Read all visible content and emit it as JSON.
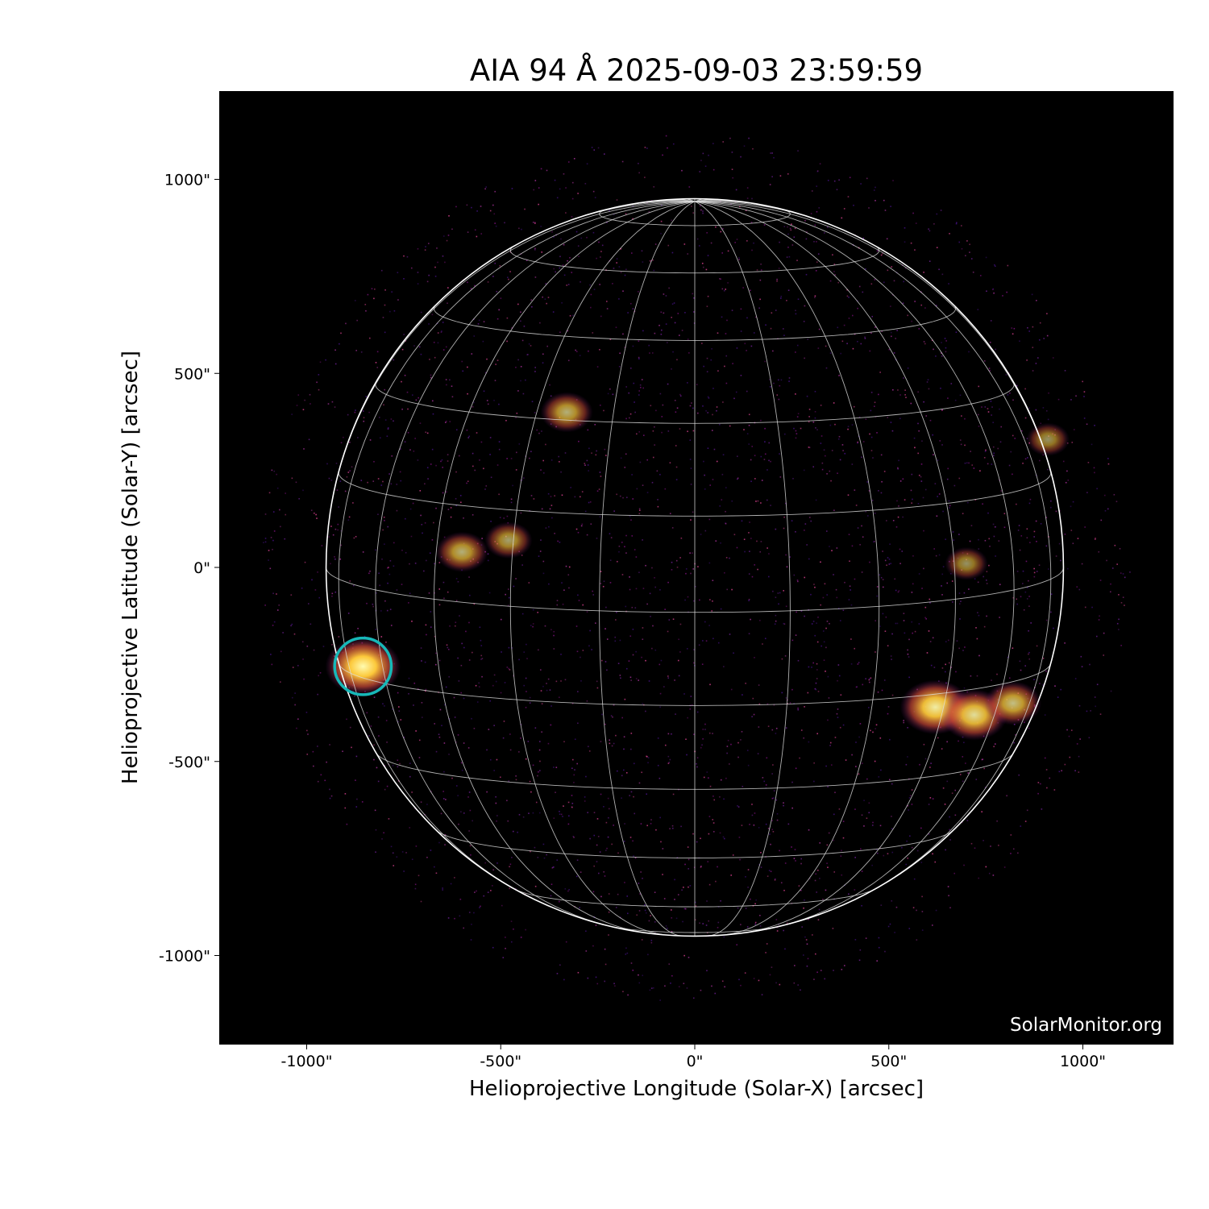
{
  "chart_data": {
    "type": "heatmap",
    "title": "AIA 94 Å 2025-09-03 23:59:59",
    "xlabel": "Helioprojective Longitude (Solar-X) [arcsec]",
    "ylabel": "Helioprojective Latitude (Solar-Y) [arcsec]",
    "xlim": [
      -1230,
      1230
    ],
    "ylim": [
      -1230,
      1230
    ],
    "x_ticks": [
      -1000,
      -500,
      0,
      500,
      1000
    ],
    "x_tick_labels": [
      "-1000\"",
      "-500\"",
      "0\"",
      "500\"",
      "1000\""
    ],
    "y_ticks": [
      1000,
      500,
      0,
      -500,
      -1000
    ],
    "y_tick_labels": [
      "1000\"",
      "500\"",
      "0\"",
      "-500\"",
      "-1000\""
    ],
    "solar_radius_arcsec": 950,
    "grid_spacing_deg": 15,
    "colormap": "inferno-like (black-purple-orange-yellow)",
    "highlight_circle": {
      "x": -855,
      "y": -255,
      "radius": 73,
      "color": "#17b8b8"
    },
    "active_regions": [
      {
        "x": -855,
        "y": -255,
        "intensity": 1.0
      },
      {
        "x": 620,
        "y": -360,
        "intensity": 0.9
      },
      {
        "x": 720,
        "y": -380,
        "intensity": 0.8
      },
      {
        "x": 820,
        "y": -350,
        "intensity": 0.6
      },
      {
        "x": -330,
        "y": 400,
        "intensity": 0.5
      },
      {
        "x": -600,
        "y": 40,
        "intensity": 0.5
      },
      {
        "x": -480,
        "y": 70,
        "intensity": 0.4
      },
      {
        "x": 700,
        "y": 10,
        "intensity": 0.3
      },
      {
        "x": 910,
        "y": 330,
        "intensity": 0.3
      }
    ],
    "watermark": "SolarMonitor.org"
  }
}
